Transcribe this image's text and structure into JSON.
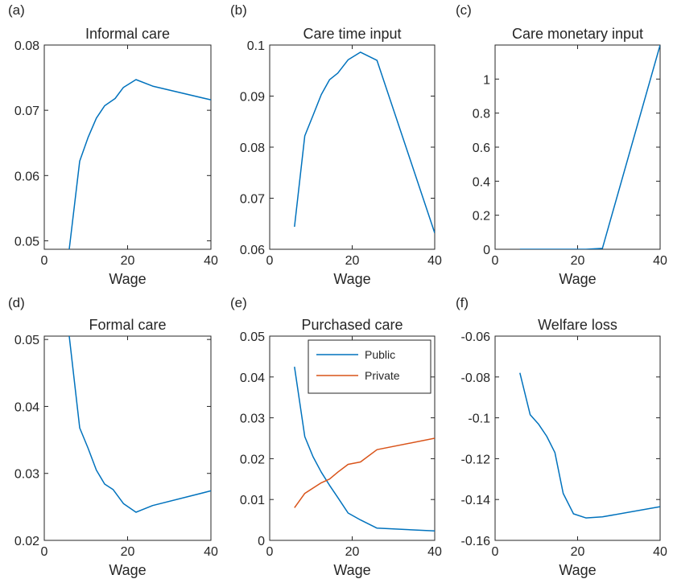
{
  "figure": {
    "colors": {
      "series1": "#0072BD",
      "series2": "#D95319",
      "axis": "#262626"
    }
  },
  "chart_data": [
    {
      "type": "line",
      "panel_label": "(a)",
      "title": "Informal care",
      "xlabel": "Wage",
      "ylabel": "",
      "xlim": [
        0,
        40
      ],
      "ylim": [
        0.0487,
        0.08
      ],
      "xticks": [
        0,
        20,
        40
      ],
      "yticks": [
        0.05,
        0.06,
        0.07,
        0.08
      ],
      "ytick_labels": [
        "0.05",
        "0.06",
        "0.07",
        "0.08"
      ],
      "series": [
        {
          "color": "#0072BD",
          "x": [
            6,
            8.5,
            10.5,
            12.5,
            14.5,
            17,
            19,
            22,
            26,
            40
          ],
          "y": [
            0.0487,
            0.0622,
            0.0658,
            0.0688,
            0.0707,
            0.0718,
            0.0735,
            0.0747,
            0.0737,
            0.0716
          ]
        }
      ]
    },
    {
      "type": "line",
      "panel_label": "(b)",
      "title": "Care time input",
      "xlabel": "Wage",
      "ylabel": "",
      "xlim": [
        0,
        40
      ],
      "ylim": [
        0.06,
        0.1
      ],
      "xticks": [
        0,
        20,
        40
      ],
      "yticks": [
        0.06,
        0.07,
        0.08,
        0.09,
        0.1
      ],
      "ytick_labels": [
        "0.06",
        "0.07",
        "0.08",
        "0.09",
        "0.1"
      ],
      "series": [
        {
          "color": "#0072BD",
          "x": [
            6,
            8.5,
            10.5,
            12.5,
            14.5,
            16.5,
            19,
            22,
            26,
            40
          ],
          "y": [
            0.0644,
            0.0822,
            0.0862,
            0.0903,
            0.0932,
            0.0945,
            0.0971,
            0.0986,
            0.097,
            0.0632
          ]
        }
      ]
    },
    {
      "type": "line",
      "panel_label": "(c)",
      "title": "Care monetary input",
      "xlabel": "Wage",
      "ylabel": "",
      "xlim": [
        0,
        40
      ],
      "ylim": [
        0,
        1.2
      ],
      "xticks": [
        0,
        20,
        40
      ],
      "yticks": [
        0,
        0.2,
        0.4,
        0.6,
        0.8,
        1
      ],
      "ytick_labels": [
        "0",
        "0.2",
        "0.4",
        "0.6",
        "0.8",
        "1"
      ],
      "series": [
        {
          "color": "#0072BD",
          "x": [
            6,
            10,
            14,
            18,
            22,
            26,
            40
          ],
          "y": [
            0,
            0,
            0,
            0,
            0,
            0.005,
            1.2
          ]
        }
      ]
    },
    {
      "type": "line",
      "panel_label": "(d)",
      "title": "Formal care",
      "xlabel": "Wage",
      "ylabel": "",
      "xlim": [
        0,
        40
      ],
      "ylim": [
        0.02,
        0.0505
      ],
      "xticks": [
        0,
        20,
        40
      ],
      "yticks": [
        0.02,
        0.03,
        0.04,
        0.05
      ],
      "ytick_labels": [
        "0.02",
        "0.03",
        "0.04",
        "0.05"
      ],
      "series": [
        {
          "color": "#0072BD",
          "x": [
            6,
            8.5,
            10.5,
            12.5,
            14.5,
            16.5,
            19,
            22,
            26,
            40
          ],
          "y": [
            0.0505,
            0.0368,
            0.0338,
            0.0305,
            0.0284,
            0.0276,
            0.0255,
            0.0242,
            0.0252,
            0.0274
          ]
        }
      ]
    },
    {
      "type": "line",
      "panel_label": "(e)",
      "title": "Purchased care",
      "xlabel": "Wage",
      "ylabel": "",
      "xlim": [
        0,
        40
      ],
      "ylim": [
        0,
        0.05
      ],
      "xticks": [
        0,
        20,
        40
      ],
      "yticks": [
        0,
        0.01,
        0.02,
        0.03,
        0.04,
        0.05
      ],
      "ytick_labels": [
        "0",
        "0.01",
        "0.02",
        "0.03",
        "0.04",
        "0.05"
      ],
      "legend": {
        "placement": "top-right",
        "entries": [
          "Public",
          "Private"
        ]
      },
      "series": [
        {
          "name": "Public",
          "color": "#0072BD",
          "x": [
            6,
            8.5,
            10.5,
            12.5,
            14.5,
            16.5,
            19,
            22,
            26,
            40
          ],
          "y": [
            0.0425,
            0.0254,
            0.0205,
            0.0167,
            0.0135,
            0.0105,
            0.0067,
            0.005,
            0.003,
            0.0023
          ]
        },
        {
          "name": "Private",
          "color": "#D95319",
          "x": [
            6,
            8.5,
            10.5,
            12.5,
            14.5,
            16.5,
            19,
            22,
            26,
            40
          ],
          "y": [
            0.008,
            0.0115,
            0.0128,
            0.0141,
            0.015,
            0.0167,
            0.0186,
            0.0192,
            0.0222,
            0.025
          ]
        }
      ]
    },
    {
      "type": "line",
      "panel_label": "(f)",
      "title": "Welfare loss",
      "xlabel": "Wage",
      "ylabel": "",
      "xlim": [
        0,
        40
      ],
      "ylim": [
        -0.16,
        -0.06
      ],
      "xticks": [
        0,
        20,
        40
      ],
      "yticks": [
        -0.16,
        -0.14,
        -0.12,
        -0.1,
        -0.08,
        -0.06
      ],
      "ytick_labels": [
        "-0.16",
        "-0.14",
        "-0.12",
        "-0.1",
        "-0.08",
        "-0.06"
      ],
      "series": [
        {
          "color": "#0072BD",
          "x": [
            6,
            8.5,
            10.5,
            12.5,
            14.5,
            16.5,
            19,
            22,
            26,
            40
          ],
          "y": [
            -0.078,
            -0.0985,
            -0.103,
            -0.109,
            -0.117,
            -0.137,
            -0.147,
            -0.149,
            -0.1485,
            -0.1435
          ]
        }
      ]
    }
  ]
}
